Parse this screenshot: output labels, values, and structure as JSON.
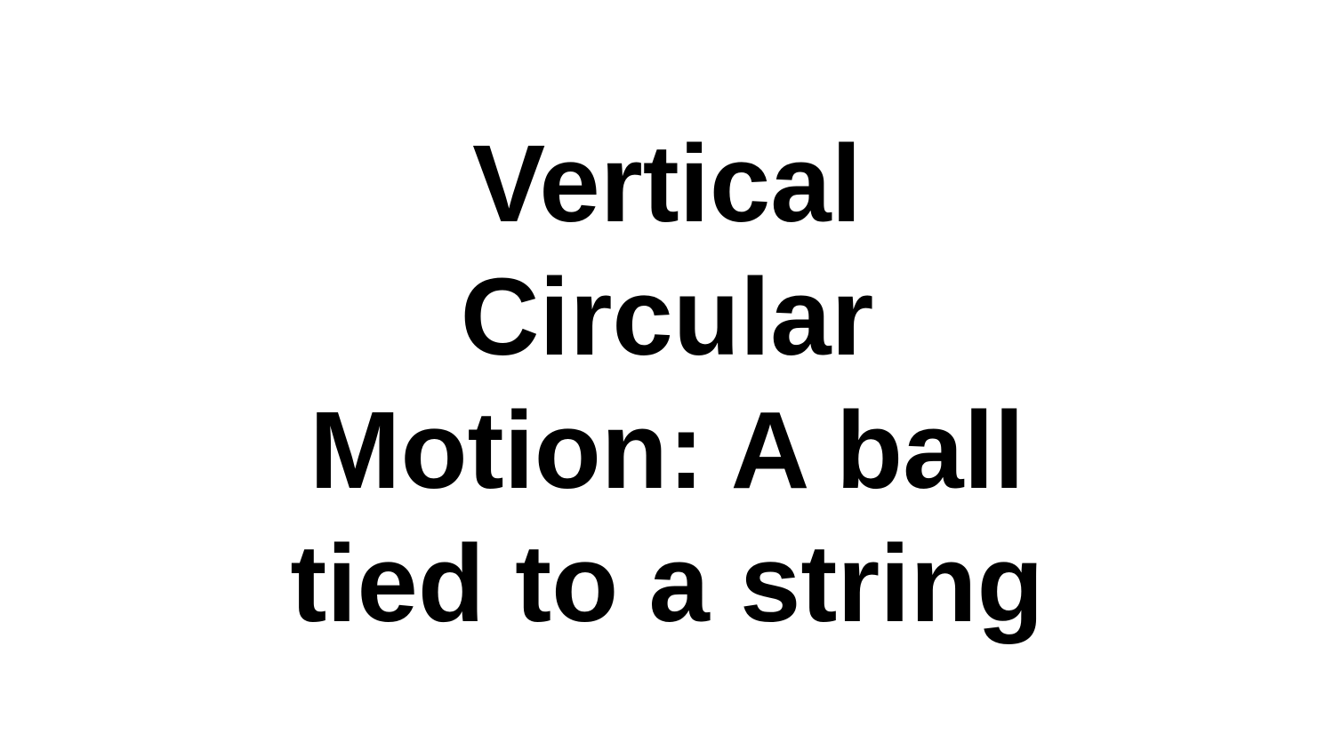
{
  "slide": {
    "title_lines": [
      "Vertical",
      "Circular",
      "Motion: A ball",
      "tied to a string"
    ],
    "text_color": "#000000",
    "background_color": "#ffffff"
  }
}
